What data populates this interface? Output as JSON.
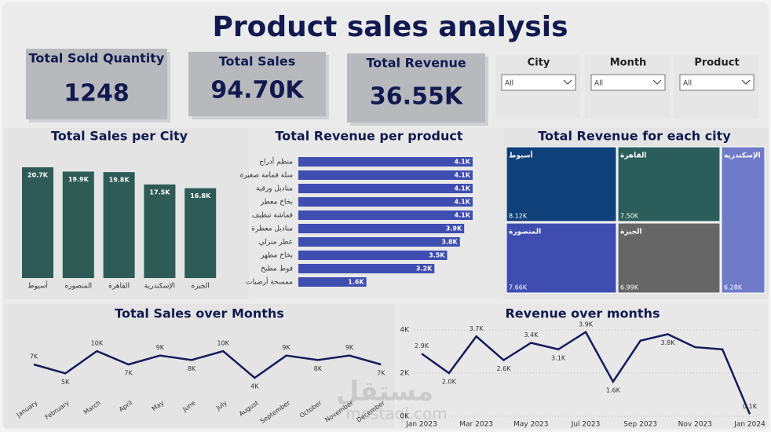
{
  "title": "Product sales analysis",
  "kpis": [
    {
      "label": "Total Sold Quantity",
      "value": "1248"
    },
    {
      "label": "Total Sales",
      "value": "94.70K"
    },
    {
      "label": "Total Revenue",
      "value": "36.55K"
    }
  ],
  "filters": [
    {
      "label": "City",
      "selected": "All"
    },
    {
      "label": "Month",
      "selected": "All"
    },
    {
      "label": "Product",
      "selected": "All"
    }
  ],
  "watermark": [
    "مستقل",
    "mostaql.com"
  ],
  "chart_data": [
    {
      "type": "bar",
      "title": "Total Sales per City",
      "color": "#2e5b56",
      "categories": [
        "أسيوط",
        "المنصورة",
        "القاهرة",
        "الإسكندرية",
        "الجيزة"
      ],
      "values": [
        20700,
        19900,
        19800,
        17500,
        16800
      ],
      "value_labels": [
        "20.7K",
        "19.9K",
        "19.8K",
        "17.5K",
        "16.8K"
      ]
    },
    {
      "type": "bar",
      "horizontal": true,
      "title": "Total Revenue per product",
      "color": "#3f4db0",
      "categories": [
        "منظم أدراج",
        "سلة قمامة صغيرة",
        "مناديل ورقية",
        "بخاخ معطر",
        "قماشة تنظيف",
        "مناديل معطرة",
        "عطر منزلي",
        "بخاخ مطهر",
        "فوط مطبخ",
        "ممسحة أرضيات"
      ],
      "values": [
        4100,
        4100,
        4100,
        4100,
        4100,
        3900,
        3800,
        3500,
        3200,
        1600
      ],
      "value_labels": [
        "4.1K",
        "4.1K",
        "4.1K",
        "4.1K",
        "4.1K",
        "3.9K",
        "3.8K",
        "3.5K",
        "3.2K",
        "1.6K"
      ]
    },
    {
      "type": "treemap",
      "title": "Total Revenue for each city",
      "categories": [
        "أسيوط",
        "القاهرة",
        "المنصورة",
        "الجيزة",
        "الإسكندرية"
      ],
      "values": [
        8120,
        7500,
        7660,
        6990,
        6280
      ],
      "value_labels": [
        "8.12K",
        "7.50K",
        "7.66K",
        "6.99K",
        "6.28K"
      ],
      "colors": [
        "#10407a",
        "#2b5e5a",
        "#3f4db0",
        "#666666",
        "#6f7bc8"
      ]
    },
    {
      "type": "line",
      "title": "Total Sales over Months",
      "color": "#161b5c",
      "categories": [
        "January",
        "February",
        "March",
        "April",
        "May",
        "June",
        "July",
        "August",
        "September",
        "October",
        "November",
        "December"
      ],
      "values": [
        7000,
        5000,
        10000,
        7000,
        9000,
        8000,
        10000,
        4000,
        9000,
        8000,
        9000,
        7000
      ],
      "value_labels": [
        "7K",
        "5K",
        "10K",
        "7K",
        "9K",
        "8K",
        "10K",
        "4K",
        "9K",
        "8K",
        "9K",
        "7K"
      ]
    },
    {
      "type": "line",
      "title": "Revenue over months",
      "color": "#161b5c",
      "x": [
        "2023-01",
        "2023-02",
        "2023-03",
        "2023-04",
        "2023-05",
        "2023-06",
        "2023-07",
        "2023-08",
        "2023-09",
        "2023-10",
        "2023-11",
        "2023-12",
        "2024-01"
      ],
      "values": [
        2900,
        2000,
        3700,
        2600,
        3400,
        3100,
        3900,
        1600,
        3500,
        3800,
        3200,
        3100,
        100
      ],
      "value_labels": [
        "2.9K",
        "2.0K",
        "3.7K",
        "2.6K",
        "3.4K",
        "3.1K",
        "3.9K",
        "1.6K",
        null,
        "3.8K",
        null,
        null,
        "0.1K"
      ],
      "ylim": [
        0,
        4000
      ],
      "yticks": [
        {
          "value": 0,
          "label": "0K"
        },
        {
          "value": 2000,
          "label": "2K"
        },
        {
          "value": 4000,
          "label": "4K"
        }
      ],
      "xticks": [
        {
          "value": "2023-01",
          "label": "Jan 2023"
        },
        {
          "value": "2023-03",
          "label": "Mar 2023"
        },
        {
          "value": "2023-05",
          "label": "May 2023"
        },
        {
          "value": "2023-07",
          "label": "Jul 2023"
        },
        {
          "value": "2023-09",
          "label": "Sep 2023"
        },
        {
          "value": "2023-11",
          "label": "Nov 2023"
        },
        {
          "value": "2024-01",
          "label": "Jan 2024"
        }
      ],
      "grid": true
    }
  ]
}
